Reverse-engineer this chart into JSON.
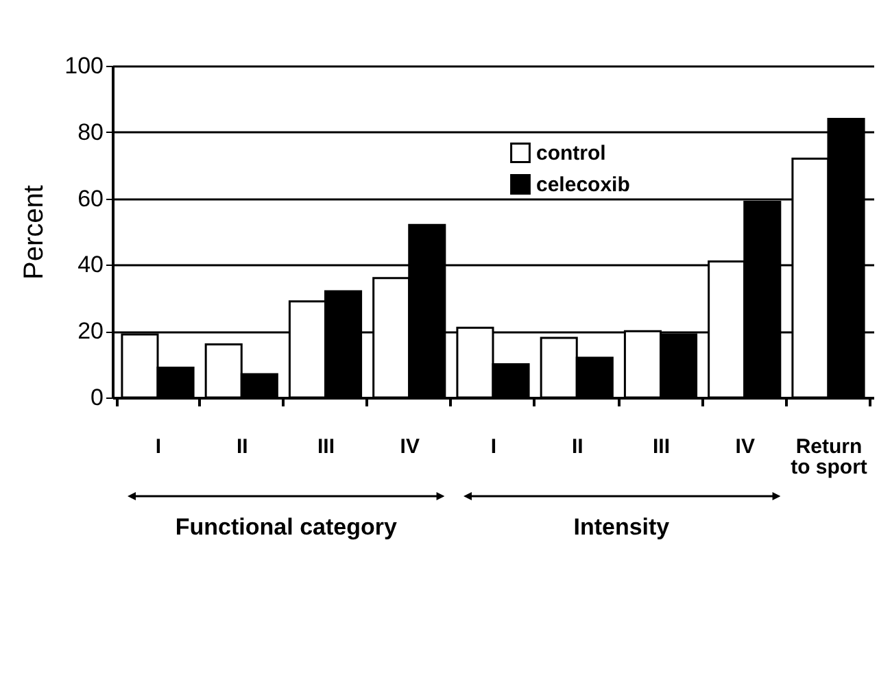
{
  "chart_data": {
    "type": "bar",
    "ylabel": "Percent",
    "categories": [
      "I",
      "II",
      "III",
      "IV",
      "I",
      "II",
      "III",
      "IV",
      "Return to sport"
    ],
    "series": [
      {
        "name": "control",
        "color": "#ffffff",
        "values": [
          19,
          16,
          29,
          36,
          21,
          18,
          20,
          41,
          72
        ]
      },
      {
        "name": "celecoxib",
        "color": "#000000",
        "values": [
          9,
          7,
          32,
          52,
          10,
          12,
          19,
          59,
          84
        ]
      }
    ],
    "ylim": [
      0,
      100
    ],
    "yticks": [
      0,
      20,
      40,
      60,
      80,
      100
    ],
    "grid": "y",
    "legend": "top",
    "annotations": [
      "Functional category",
      "Intensity"
    ]
  }
}
